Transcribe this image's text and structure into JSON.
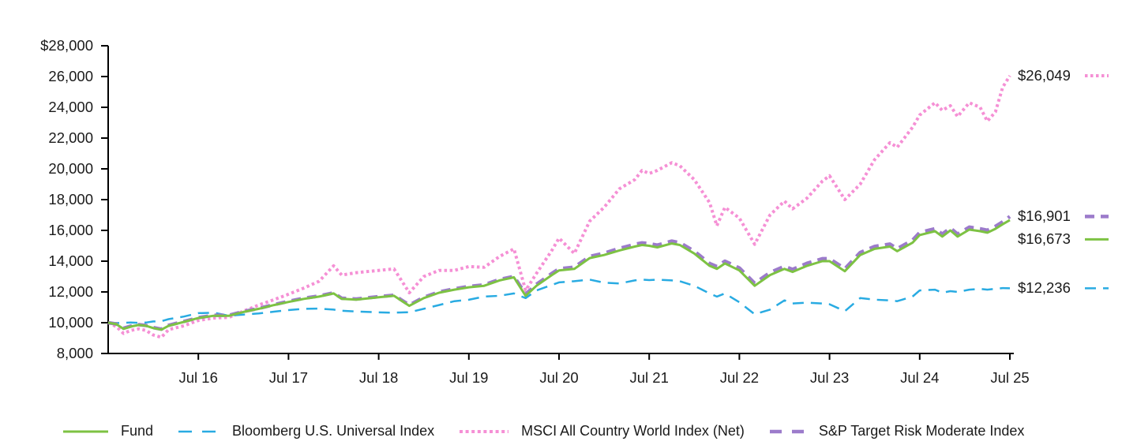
{
  "chart_data": {
    "type": "line",
    "title": "",
    "xlabel": "",
    "ylabel": "",
    "xlim": [
      2015.58,
      2025.58
    ],
    "ylim": [
      8000,
      28000
    ],
    "grid": false,
    "legend_position": "bottom",
    "y_ticks": [
      28000,
      26000,
      24000,
      22000,
      20000,
      18000,
      16000,
      14000,
      12000,
      10000,
      8000
    ],
    "y_tick_labels": [
      "$28,000",
      "26,000",
      "24,000",
      "22,000",
      "20,000",
      "18,000",
      "16,000",
      "14,000",
      "12,000",
      "10,000",
      "8,000"
    ],
    "x_tick_positions": [
      2016.58,
      2017.58,
      2018.58,
      2019.58,
      2020.58,
      2021.58,
      2022.58,
      2023.58,
      2024.58,
      2025.58
    ],
    "x_tick_labels": [
      "Jul 16",
      "Jul 17",
      "Jul 18",
      "Jul 19",
      "Jul 20",
      "Jul 21",
      "Jul 22",
      "Jul 23",
      "Jul 24",
      "Jul 25"
    ],
    "x": [
      2015.58,
      2015.67,
      2015.75,
      2015.83,
      2015.92,
      2016.0,
      2016.08,
      2016.17,
      2016.25,
      2016.42,
      2016.58,
      2016.75,
      2016.92,
      2017.08,
      2017.25,
      2017.42,
      2017.58,
      2017.75,
      2017.92,
      2018.08,
      2018.17,
      2018.33,
      2018.58,
      2018.75,
      2018.92,
      2019.08,
      2019.25,
      2019.42,
      2019.58,
      2019.75,
      2019.92,
      2020.08,
      2020.21,
      2020.33,
      2020.5,
      2020.58,
      2020.75,
      2020.92,
      2021.08,
      2021.25,
      2021.42,
      2021.5,
      2021.58,
      2021.67,
      2021.83,
      2021.92,
      2022.08,
      2022.25,
      2022.33,
      2022.42,
      2022.58,
      2022.75,
      2022.92,
      2023.08,
      2023.17,
      2023.33,
      2023.5,
      2023.58,
      2023.75,
      2023.92,
      2024.08,
      2024.25,
      2024.33,
      2024.5,
      2024.58,
      2024.75,
      2024.83,
      2024.92,
      2025.0,
      2025.13,
      2025.25,
      2025.33,
      2025.42,
      2025.5,
      2025.58
    ],
    "series": [
      {
        "name": "Fund",
        "color": "#7DC243",
        "line_style": "solid",
        "stroke_width": 3,
        "end_label": "$16,673",
        "values": [
          10000,
          9900,
          9600,
          9750,
          9850,
          9800,
          9650,
          9550,
          9800,
          10050,
          10300,
          10450,
          10450,
          10700,
          10900,
          11150,
          11350,
          11550,
          11700,
          11900,
          11550,
          11500,
          11650,
          11750,
          11100,
          11600,
          11950,
          12150,
          12300,
          12400,
          12750,
          12950,
          11750,
          12400,
          13100,
          13400,
          13500,
          14200,
          14400,
          14700,
          14950,
          15050,
          15000,
          14900,
          15150,
          15050,
          14500,
          13700,
          13500,
          13850,
          13400,
          12400,
          13100,
          13500,
          13300,
          13700,
          14000,
          14000,
          13350,
          14400,
          14800,
          14950,
          14650,
          15200,
          15700,
          15950,
          15600,
          16000,
          15600,
          16050,
          15950,
          15850,
          16100,
          16400,
          16673
        ]
      },
      {
        "name": "Bloomberg U.S. Universal Index",
        "color": "#29ABE2",
        "line_style": "dashed",
        "stroke_width": 2.5,
        "end_label": "$12,236",
        "values": [
          10000,
          9980,
          9990,
          10010,
          9990,
          10010,
          10080,
          10100,
          10230,
          10400,
          10620,
          10650,
          10450,
          10530,
          10600,
          10720,
          10820,
          10900,
          10920,
          10850,
          10780,
          10730,
          10670,
          10650,
          10680,
          10900,
          11150,
          11400,
          11490,
          11700,
          11750,
          11900,
          11600,
          12100,
          12450,
          12620,
          12700,
          12800,
          12600,
          12550,
          12750,
          12800,
          12770,
          12800,
          12750,
          12700,
          12400,
          11900,
          11700,
          11900,
          11330,
          10550,
          10850,
          11450,
          11250,
          11300,
          11250,
          11200,
          10750,
          11600,
          11500,
          11450,
          11400,
          11700,
          12100,
          12150,
          11950,
          12050,
          12000,
          12150,
          12200,
          12150,
          12200,
          12250,
          12236
        ]
      },
      {
        "name": "MSCI All Country World Index (Net)",
        "color": "#F590D5",
        "line_style": "dotted",
        "stroke_width": 4,
        "end_label": "$26,049",
        "values": [
          10000,
          9750,
          9300,
          9500,
          9600,
          9500,
          9200,
          9050,
          9550,
          9800,
          10150,
          10300,
          10350,
          10750,
          11150,
          11500,
          11850,
          12250,
          12700,
          13700,
          13100,
          13250,
          13400,
          13500,
          11950,
          13000,
          13400,
          13400,
          13650,
          13600,
          14300,
          14800,
          12100,
          13200,
          14700,
          15500,
          14500,
          16600,
          17500,
          18700,
          19300,
          19900,
          19700,
          19900,
          20400,
          20200,
          19300,
          17800,
          16300,
          17500,
          16800,
          15100,
          17000,
          17900,
          17400,
          18100,
          19200,
          19550,
          18000,
          19000,
          20600,
          21700,
          21400,
          22700,
          23500,
          24300,
          23800,
          24100,
          23400,
          24300,
          24000,
          23100,
          23700,
          25300,
          26049
        ]
      },
      {
        "name": "S&P Target Risk Moderate Index",
        "color": "#9C7BCB",
        "line_style": "dashed",
        "stroke_width": 4.5,
        "end_label": "$16,901",
        "values": [
          10000,
          9920,
          9640,
          9780,
          9870,
          9820,
          9680,
          9580,
          9830,
          10080,
          10330,
          10480,
          10480,
          10730,
          10930,
          11180,
          11390,
          11590,
          11740,
          11940,
          11590,
          11540,
          11690,
          11790,
          11150,
          11650,
          12000,
          12200,
          12360,
          12460,
          12810,
          13010,
          11850,
          12500,
          13200,
          13510,
          13610,
          14310,
          14520,
          14830,
          15090,
          15190,
          15140,
          15040,
          15300,
          15200,
          14650,
          13850,
          13650,
          14000,
          13560,
          12560,
          13260,
          13660,
          13460,
          13860,
          14160,
          14160,
          13510,
          14560,
          14960,
          15110,
          14810,
          15360,
          15860,
          16110,
          15760,
          16160,
          15760,
          16210,
          16110,
          16010,
          16260,
          16560,
          16901
        ]
      }
    ]
  }
}
